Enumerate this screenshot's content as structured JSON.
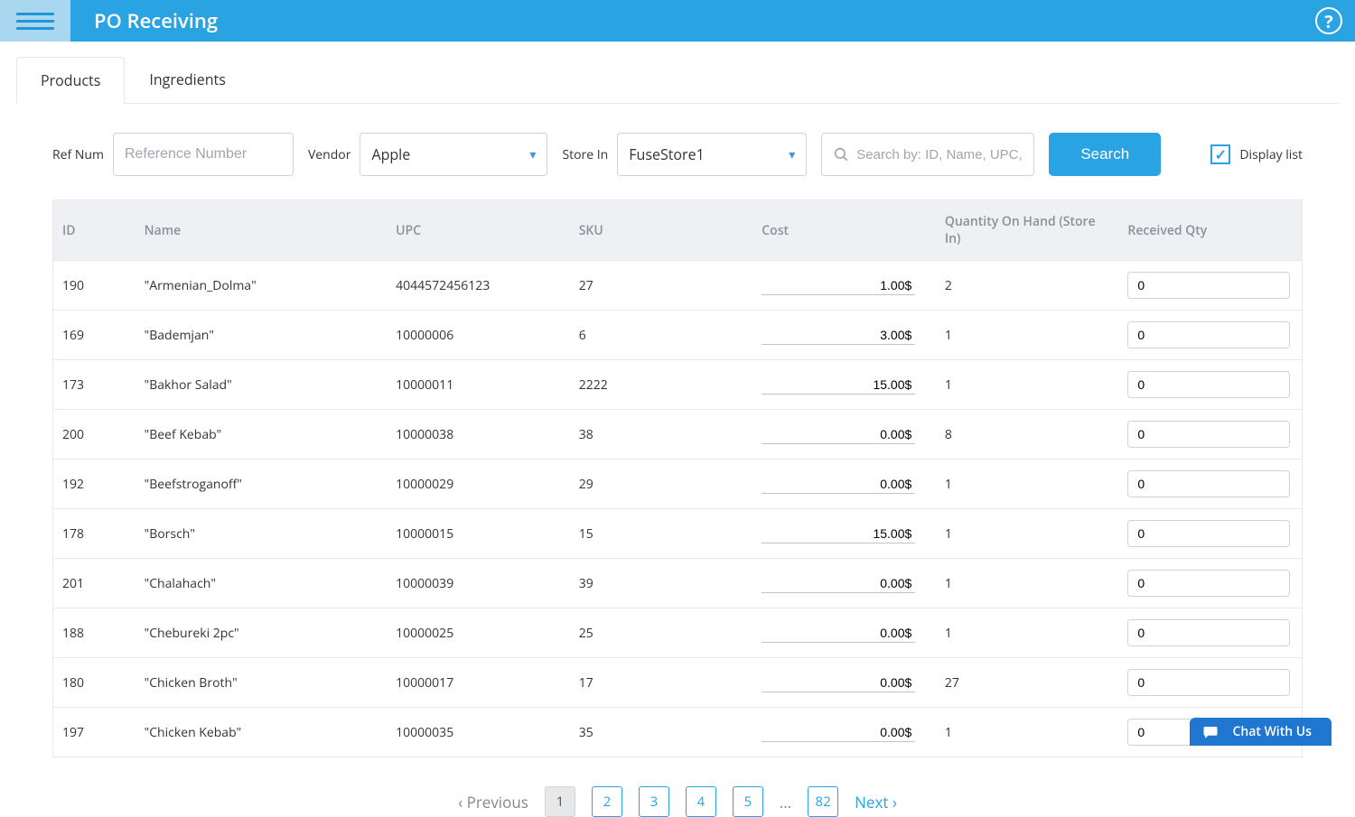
{
  "header": {
    "title": "PO Receiving"
  },
  "tabs": {
    "products": "Products",
    "ingredients": "Ingredients"
  },
  "filters": {
    "ref_num_label": "Ref Num",
    "ref_num_placeholder": "Reference Number",
    "vendor_label": "Vendor",
    "vendor_value": "Apple",
    "store_label": "Store In",
    "store_value": "FuseStore1",
    "search_placeholder": "Search by: ID, Name, UPC, S",
    "search_button": "Search",
    "display_list_label": "Display list",
    "display_list_checked": true
  },
  "table": {
    "headers": {
      "id": "ID",
      "name": "Name",
      "upc": "UPC",
      "sku": "SKU",
      "cost": "Cost",
      "qoh": "Quantity On Hand (Store In)",
      "rqty": "Received Qty"
    },
    "rows": [
      {
        "id": "190",
        "name": "\"Armenian_Dolma\"",
        "upc": "4044572456123",
        "sku": "27",
        "cost": "1.00$",
        "qoh": "2",
        "rqty": "0"
      },
      {
        "id": "169",
        "name": "\"Bademjan\"",
        "upc": "10000006",
        "sku": "6",
        "cost": "3.00$",
        "qoh": "1",
        "rqty": "0"
      },
      {
        "id": "173",
        "name": "\"Bakhor Salad\"",
        "upc": "10000011",
        "sku": "2222",
        "cost": "15.00$",
        "qoh": "1",
        "rqty": "0"
      },
      {
        "id": "200",
        "name": "\"Beef Kebab\"",
        "upc": "10000038",
        "sku": "38",
        "cost": "0.00$",
        "qoh": "8",
        "rqty": "0"
      },
      {
        "id": "192",
        "name": "\"Beefstroganoff\"",
        "upc": "10000029",
        "sku": "29",
        "cost": "0.00$",
        "qoh": "1",
        "rqty": "0"
      },
      {
        "id": "178",
        "name": "\"Borsch\"",
        "upc": "10000015",
        "sku": "15",
        "cost": "15.00$",
        "qoh": "1",
        "rqty": "0"
      },
      {
        "id": "201",
        "name": "\"Chalahach\"",
        "upc": "10000039",
        "sku": "39",
        "cost": "0.00$",
        "qoh": "1",
        "rqty": "0"
      },
      {
        "id": "188",
        "name": "\"Chebureki 2pc\"",
        "upc": "10000025",
        "sku": "25",
        "cost": "0.00$",
        "qoh": "1",
        "rqty": "0"
      },
      {
        "id": "180",
        "name": "\"Chicken Broth\"",
        "upc": "10000017",
        "sku": "17",
        "cost": "0.00$",
        "qoh": "27",
        "rqty": "0"
      },
      {
        "id": "197",
        "name": "\"Chicken Kebab\"",
        "upc": "10000035",
        "sku": "35",
        "cost": "0.00$",
        "qoh": "1",
        "rqty": "0"
      }
    ]
  },
  "pagination": {
    "previous": "‹ Previous",
    "next": "Next ›",
    "current": "1",
    "pages": [
      "2",
      "3",
      "4",
      "5"
    ],
    "dots": "…",
    "last": "82"
  },
  "chat": {
    "label": "Chat With Us"
  },
  "colors": {
    "brand": "#29a3e2",
    "hamburger_bg": "#a9d7ef",
    "border": "#cfd4d9",
    "table_header_bg": "#eef0f3",
    "table_header_fg": "#8b9199",
    "chat_bg": "#1f77d0"
  }
}
